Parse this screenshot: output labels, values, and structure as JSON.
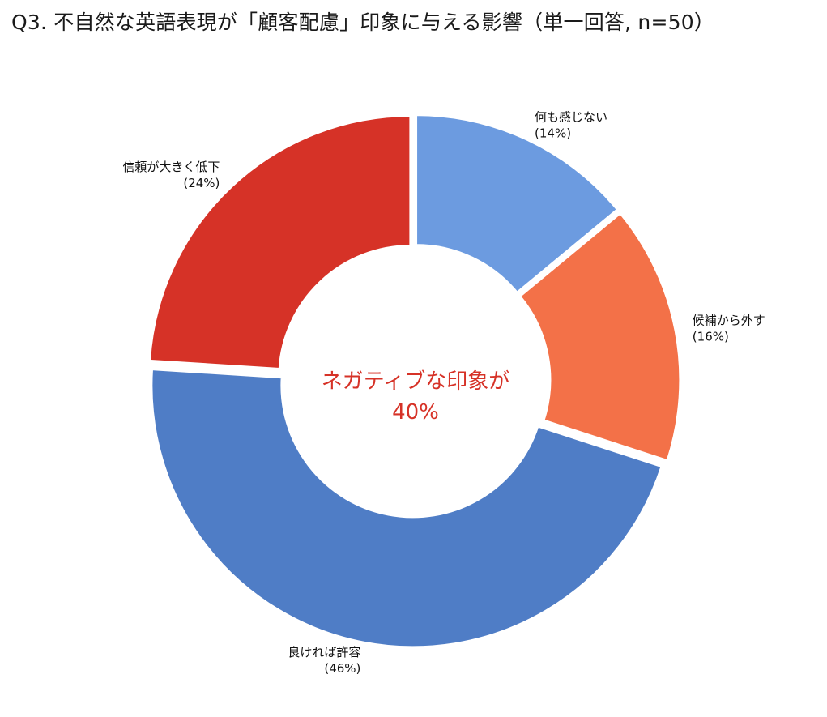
{
  "chart_data": {
    "type": "pie",
    "subtype": "donut",
    "title": "Q3. 不自然な英語表現が「顧客配慮」印象に与える影響（単一回答, n=50）",
    "slices": [
      {
        "label": "何も感じない",
        "value": 14,
        "value_label": "(14%)",
        "color": "#6c9be0"
      },
      {
        "label": "候補から外す",
        "value": 16,
        "value_label": "(16%)",
        "color": "#f37148"
      },
      {
        "label": "良ければ許容",
        "value": 46,
        "value_label": "(46%)",
        "color": "#4f7dc6"
      },
      {
        "label": "信頼が大きく低下",
        "value": 24,
        "value_label": "(24%)",
        "color": "#d63227"
      }
    ],
    "center_annotation": {
      "line1": "ネガティブな印象が",
      "line2": "40%",
      "color": "#d63227"
    },
    "legend": "none"
  }
}
